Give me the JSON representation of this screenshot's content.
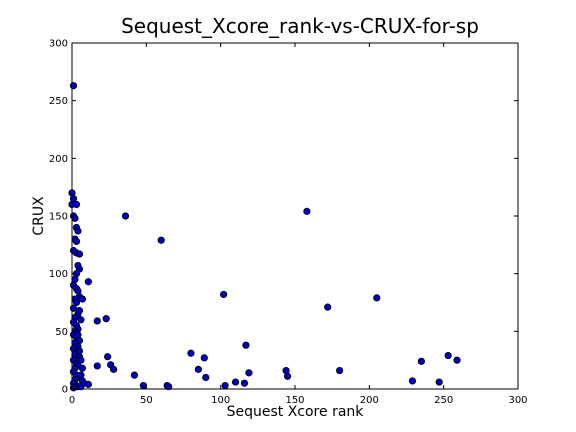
{
  "chart_data": {
    "type": "scatter",
    "title": "Sequest_Xcore_rank-vs-CRUX-for-sp",
    "xlabel": "Sequest Xcore rank",
    "ylabel": "CRUX",
    "xlim": [
      0,
      300
    ],
    "ylim": [
      0,
      300
    ],
    "xticks": [
      "0",
      "50",
      "100",
      "150",
      "200",
      "250",
      "300"
    ],
    "yticks": [
      "0",
      "50",
      "100",
      "150",
      "200",
      "250",
      "300"
    ],
    "grid": false,
    "legend": "none",
    "marker_color": "#0000bf",
    "marker_edge": "#000000",
    "series": [
      {
        "points": [
          [
            1,
            263
          ],
          [
            0,
            170
          ],
          [
            1,
            165
          ],
          [
            0,
            160
          ],
          [
            3,
            160
          ],
          [
            1,
            150
          ],
          [
            2,
            148
          ],
          [
            3,
            140
          ],
          [
            4,
            137
          ],
          [
            2,
            130
          ],
          [
            3,
            128
          ],
          [
            1,
            120
          ],
          [
            3,
            118
          ],
          [
            5,
            117
          ],
          [
            4,
            107
          ],
          [
            5,
            104
          ],
          [
            3,
            100
          ],
          [
            2,
            95
          ],
          [
            1,
            90
          ],
          [
            3,
            87
          ],
          [
            4,
            85
          ],
          [
            5,
            80
          ],
          [
            2,
            78
          ],
          [
            7,
            78
          ],
          [
            3,
            75
          ],
          [
            1,
            70
          ],
          [
            4,
            65
          ],
          [
            2,
            62
          ],
          [
            1,
            58
          ],
          [
            3,
            55
          ],
          [
            4,
            52
          ],
          [
            2,
            50
          ],
          [
            1,
            47
          ],
          [
            3,
            45
          ],
          [
            5,
            42
          ],
          [
            2,
            40
          ],
          [
            4,
            37
          ],
          [
            1,
            35
          ],
          [
            3,
            32
          ],
          [
            2,
            30
          ],
          [
            5,
            28
          ],
          [
            1,
            25
          ],
          [
            3,
            22
          ],
          [
            4,
            20
          ],
          [
            2,
            18
          ],
          [
            1,
            15
          ],
          [
            3,
            12
          ],
          [
            5,
            10
          ],
          [
            2,
            8
          ],
          [
            1,
            5
          ],
          [
            3,
            3
          ],
          [
            4,
            2
          ],
          [
            1,
            1
          ],
          [
            6,
            2
          ],
          [
            7,
            7
          ],
          [
            8,
            5
          ],
          [
            6,
            12
          ],
          [
            7,
            18
          ],
          [
            6,
            25
          ],
          [
            5,
            33
          ],
          [
            4,
            47
          ],
          [
            6,
            60
          ],
          [
            5,
            68
          ],
          [
            11,
            93
          ],
          [
            17,
            59
          ],
          [
            23,
            61
          ],
          [
            24,
            28
          ],
          [
            26,
            21
          ],
          [
            28,
            17
          ],
          [
            17,
            20
          ],
          [
            11,
            4
          ],
          [
            36,
            150
          ],
          [
            42,
            12
          ],
          [
            48,
            3
          ],
          [
            60,
            129
          ],
          [
            64,
            3
          ],
          [
            65,
            2
          ],
          [
            80,
            31
          ],
          [
            85,
            17
          ],
          [
            89,
            27
          ],
          [
            90,
            10
          ],
          [
            102,
            82
          ],
          [
            103,
            3
          ],
          [
            110,
            6
          ],
          [
            116,
            5
          ],
          [
            117,
            38
          ],
          [
            119,
            14
          ],
          [
            144,
            16
          ],
          [
            145,
            11
          ],
          [
            158,
            154
          ],
          [
            172,
            71
          ],
          [
            180,
            16
          ],
          [
            205,
            79
          ],
          [
            229,
            7
          ],
          [
            235,
            24
          ],
          [
            247,
            6
          ],
          [
            253,
            29
          ],
          [
            259,
            25
          ]
        ]
      }
    ]
  }
}
